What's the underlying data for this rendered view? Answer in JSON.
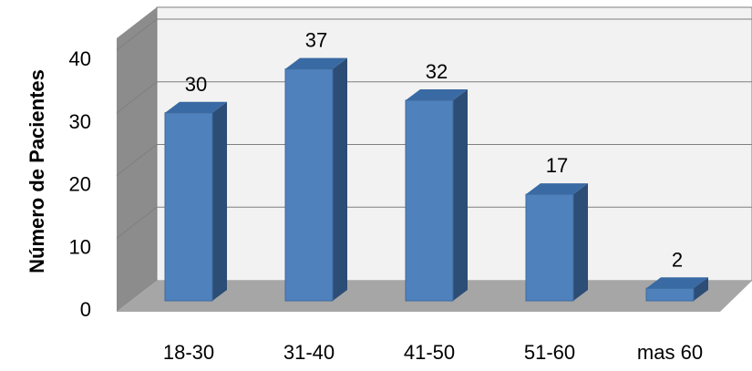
{
  "chart_data": {
    "type": "bar",
    "categories": [
      "18-30",
      "31-40",
      "41-50",
      "51-60",
      "mas 60"
    ],
    "values": [
      30,
      37,
      32,
      17,
      2
    ],
    "data_labels": [
      "30",
      "37",
      "32",
      "17",
      "2"
    ],
    "ylabel": "Número de Pacientes",
    "xlabel": "",
    "title": "",
    "ylim": [
      0,
      40
    ],
    "yticks": [
      "0",
      "10",
      "20",
      "30",
      "40"
    ],
    "grid": true,
    "style": "3d-column",
    "colors": {
      "bar_front": "#4f81bd",
      "bar_side": "#2c4d75",
      "bar_top": "#3a6aa3",
      "wall": "#f2f2f2",
      "floor": "#a6a6a6",
      "side_wall": "#8c8c8c"
    }
  }
}
